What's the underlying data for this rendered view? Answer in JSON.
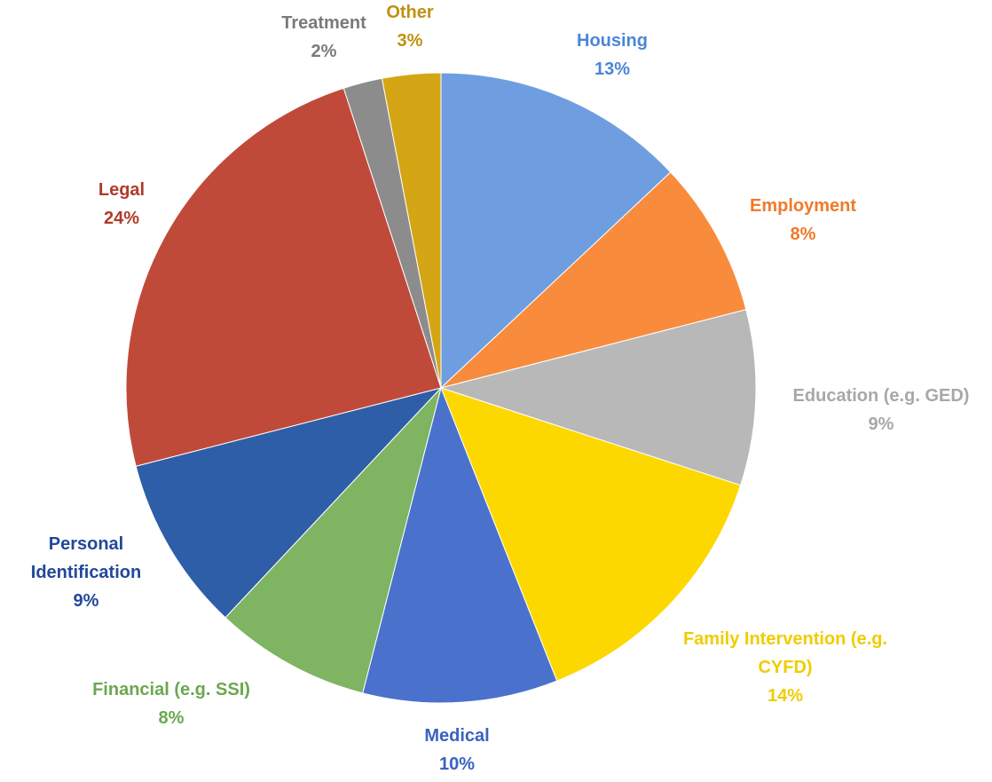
{
  "chart_data": {
    "type": "pie",
    "categories": [
      "Housing",
      "Employment",
      "Education (e.g. GED)",
      "Family Intervention (e.g. CYFD)",
      "Medical",
      "Financial (e.g. SSI)",
      "Personal Identification",
      "Legal",
      "Treatment",
      "Other"
    ],
    "values": [
      13,
      8,
      9,
      14,
      10,
      8,
      9,
      24,
      2,
      3
    ],
    "value_labels": [
      "13%",
      "8%",
      "9%",
      "14%",
      "10%",
      "8%",
      "9%",
      "24%",
      "2%",
      "3%"
    ],
    "colors": [
      "#6f9ee0",
      "#f98b3c",
      "#b8b8b8",
      "#fdd800",
      "#4a72cc",
      "#7eb462",
      "#2f5ea8",
      "#c04a3a",
      "#8c8c8c",
      "#d4a514"
    ],
    "label_colors": [
      "#4a86d8",
      "#f07a2a",
      "#a8a8a8",
      "#f0cc00",
      "#3a62c0",
      "#6aa84f",
      "#22489a",
      "#b03a2a",
      "#7a7a7a",
      "#c09010"
    ]
  }
}
